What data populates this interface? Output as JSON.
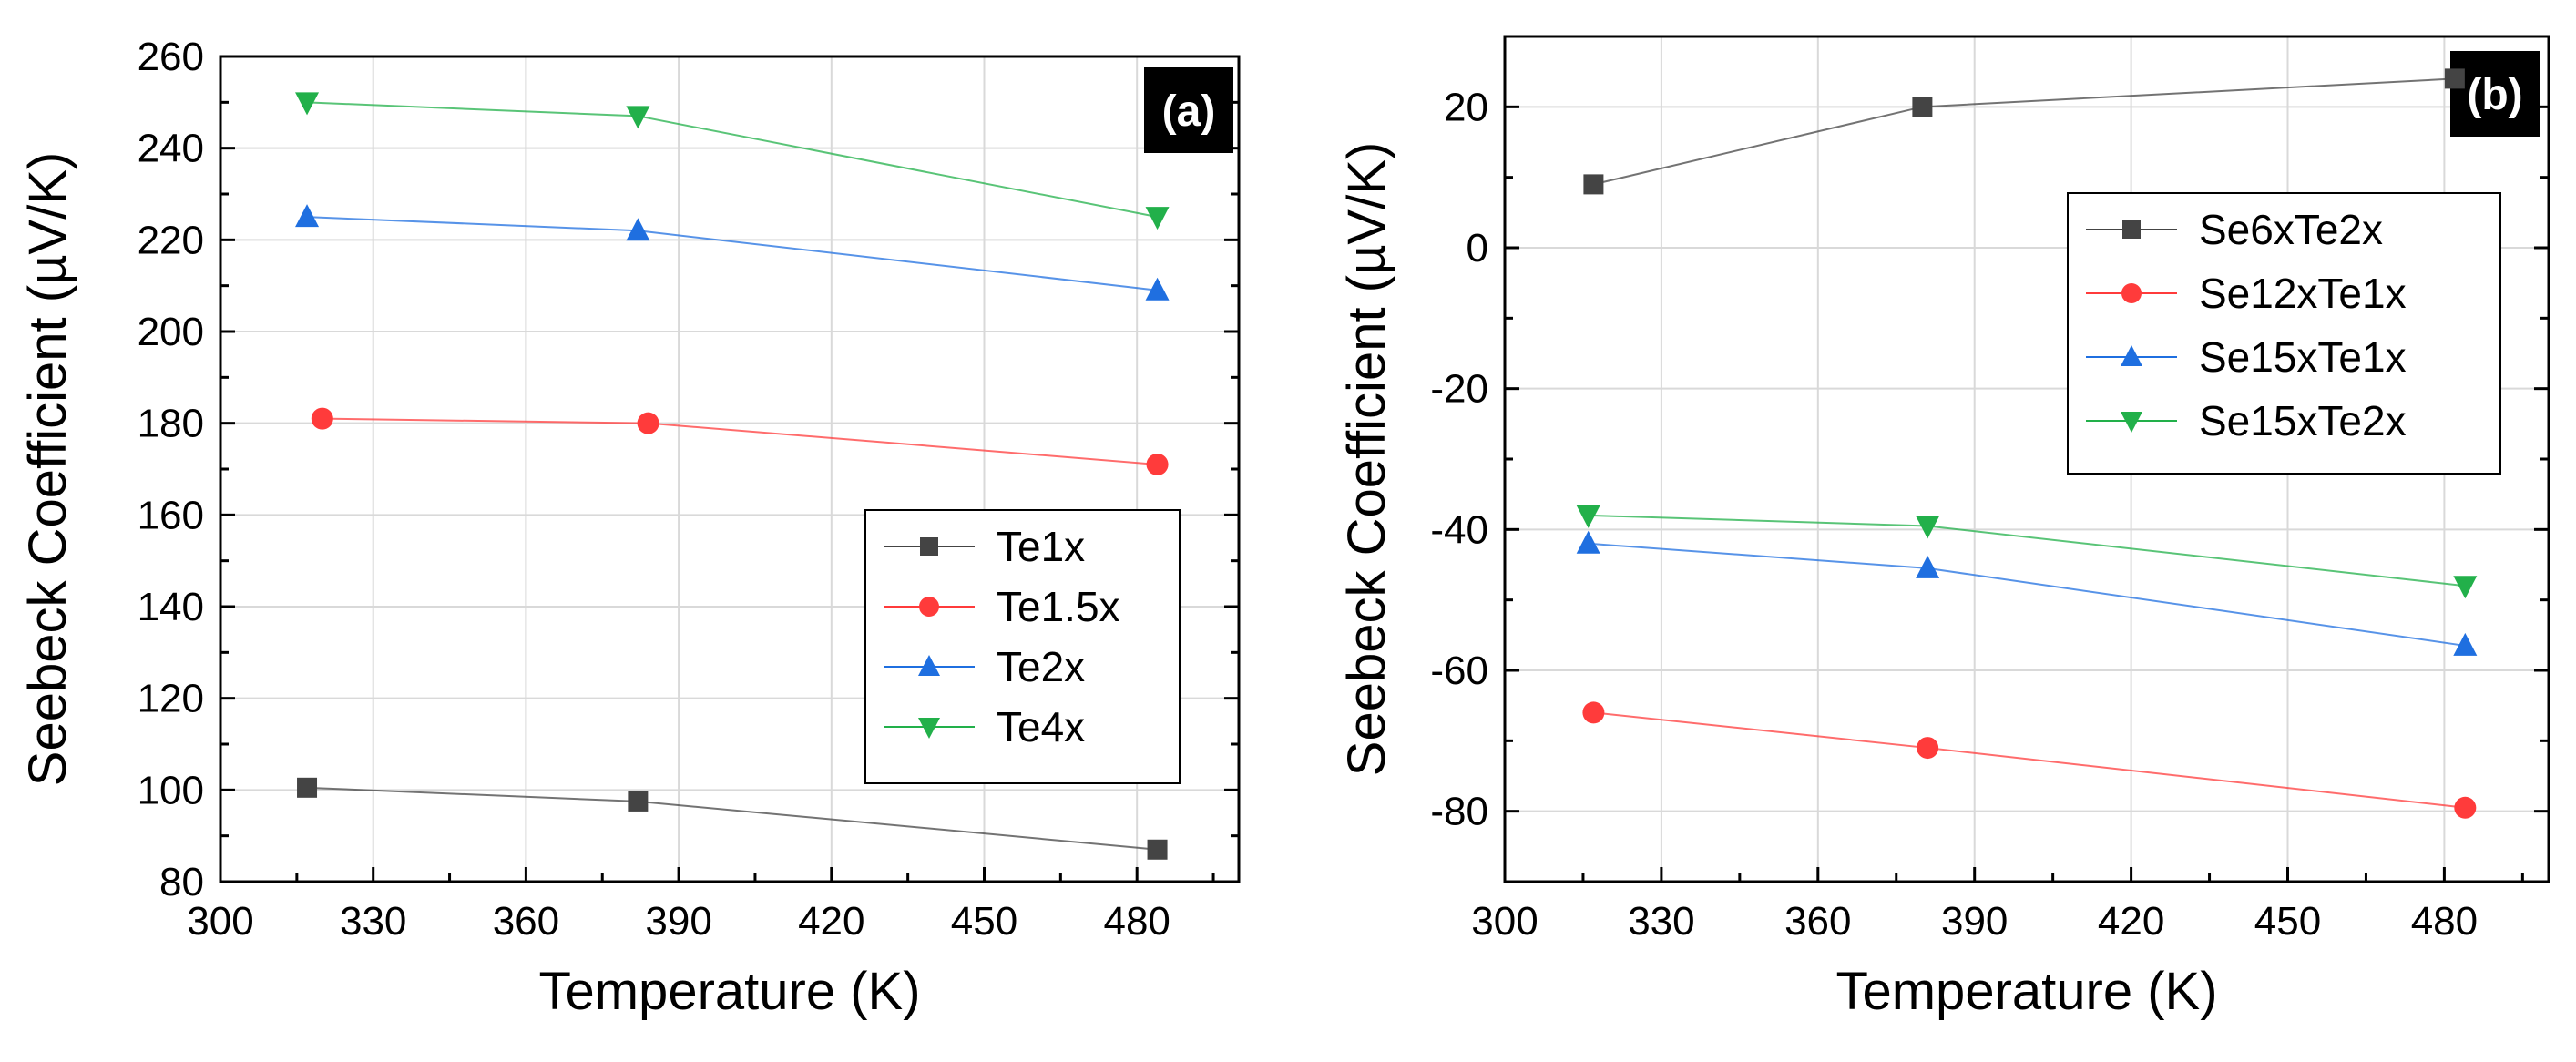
{
  "chart_data": [
    {
      "type": "line",
      "panel_label": "(a)",
      "title": "",
      "xlabel": "Temperature (K)",
      "ylabel": "Seebeck Coefficient (µV/K)",
      "xlim": [
        300,
        500
      ],
      "ylim": [
        80,
        260
      ],
      "xticks": [
        "300",
        "330",
        "360",
        "390",
        "420",
        "450",
        "480"
      ],
      "yticks": [
        "80",
        "100",
        "120",
        "140",
        "160",
        "180",
        "200",
        "220",
        "240",
        "260"
      ],
      "legend_position": "lower-right",
      "grid": true,
      "series": [
        {
          "name": "Te1x",
          "color": "#444444",
          "marker": "square",
          "x": [
            317,
            382,
            484
          ],
          "values": [
            100.5,
            97.5,
            87
          ]
        },
        {
          "name": "Te1.5x",
          "color": "#ff3b3b",
          "marker": "circle",
          "x": [
            320,
            384,
            484
          ],
          "values": [
            181,
            180,
            171
          ]
        },
        {
          "name": "Te2x",
          "color": "#1f6fe0",
          "marker": "triangle-up",
          "x": [
            317,
            382,
            484
          ],
          "values": [
            225,
            222,
            209
          ]
        },
        {
          "name": "Te4x",
          "color": "#22b04a",
          "marker": "triangle-down",
          "x": [
            317,
            382,
            484
          ],
          "values": [
            250,
            247,
            225
          ]
        }
      ]
    },
    {
      "type": "line",
      "panel_label": "(b)",
      "title": "",
      "xlabel": "Temperature (K)",
      "ylabel": "Seebeck Coefficient (µV/K)",
      "xlim": [
        300,
        500
      ],
      "ylim": [
        -90,
        30
      ],
      "xticks": [
        "300",
        "330",
        "360",
        "390",
        "420",
        "450",
        "480"
      ],
      "yticks": [
        "-80",
        "-60",
        "-40",
        "-20",
        "0",
        "20"
      ],
      "legend_position": "upper-right",
      "grid": true,
      "series": [
        {
          "name": "Se6xTe2x",
          "color": "#444444",
          "marker": "square",
          "x": [
            317,
            380,
            482
          ],
          "values": [
            9,
            20,
            24
          ]
        },
        {
          "name": "Se12xTe1x",
          "color": "#ff3b3b",
          "marker": "circle",
          "x": [
            317,
            381,
            484
          ],
          "values": [
            -66,
            -71,
            -79.5
          ]
        },
        {
          "name": "Se15xTe1x",
          "color": "#1f6fe0",
          "marker": "triangle-up",
          "x": [
            316,
            381,
            484
          ],
          "values": [
            -42,
            -45.5,
            -56.5
          ]
        },
        {
          "name": "Se15xTe2x",
          "color": "#22b04a",
          "marker": "triangle-down",
          "x": [
            316,
            381,
            484
          ],
          "values": [
            -38,
            -39.5,
            -48
          ]
        }
      ]
    }
  ]
}
